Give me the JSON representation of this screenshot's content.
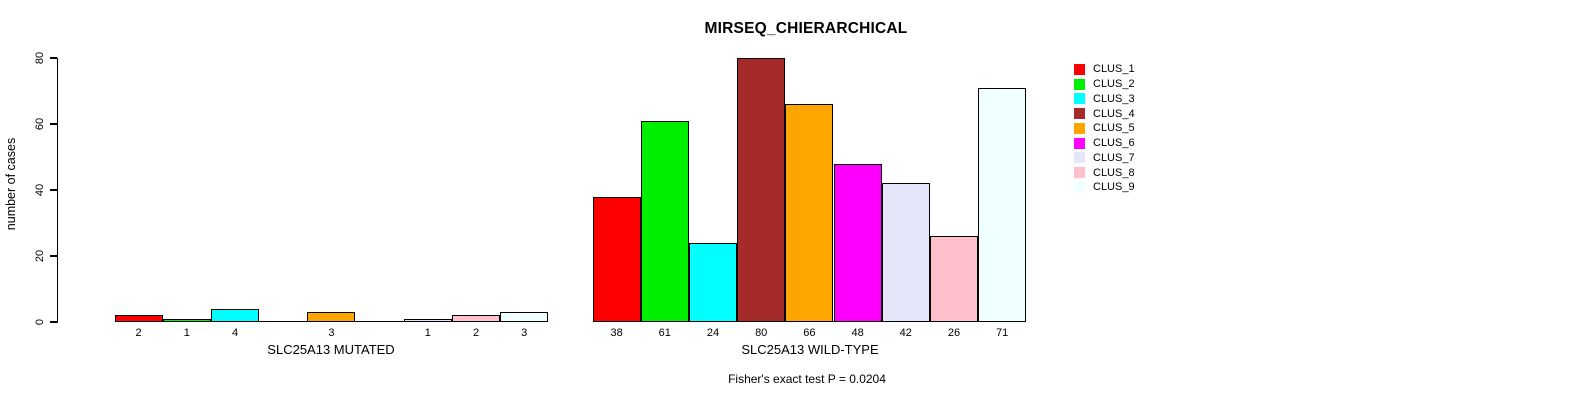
{
  "chart_data": {
    "type": "bar",
    "title": "MIRSEQ_CHIERARCHICAL",
    "ylabel": "number of cases",
    "ylim": [
      0,
      80
    ],
    "yticks": [
      0,
      20,
      40,
      60,
      80
    ],
    "grid": false,
    "legend_position": "right",
    "bar_value_labels": true,
    "categories": [
      "SLC25A13 MUTATED",
      "SLC25A13 WILD-TYPE"
    ],
    "series": [
      {
        "name": "CLUS_1",
        "color": "#FF0000",
        "values": [
          2,
          38
        ]
      },
      {
        "name": "CLUS_2",
        "color": "#00EE00",
        "values": [
          1,
          61
        ]
      },
      {
        "name": "CLUS_3",
        "color": "#00FFFF",
        "values": [
          4,
          24
        ]
      },
      {
        "name": "CLUS_4",
        "color": "#A52A2A",
        "values": [
          0,
          80
        ]
      },
      {
        "name": "CLUS_5",
        "color": "#FFA500",
        "values": [
          3,
          66
        ]
      },
      {
        "name": "CLUS_6",
        "color": "#FF00FF",
        "values": [
          0,
          48
        ]
      },
      {
        "name": "CLUS_7",
        "color": "#E6E6FA",
        "values": [
          1,
          42
        ]
      },
      {
        "name": "CLUS_8",
        "color": "#FFC0CB",
        "values": [
          2,
          26
        ]
      },
      {
        "name": "CLUS_9",
        "color": "#F0FFFF",
        "values": [
          3,
          71
        ]
      }
    ],
    "annotation": "Fisher's exact test P = 0.0204"
  }
}
